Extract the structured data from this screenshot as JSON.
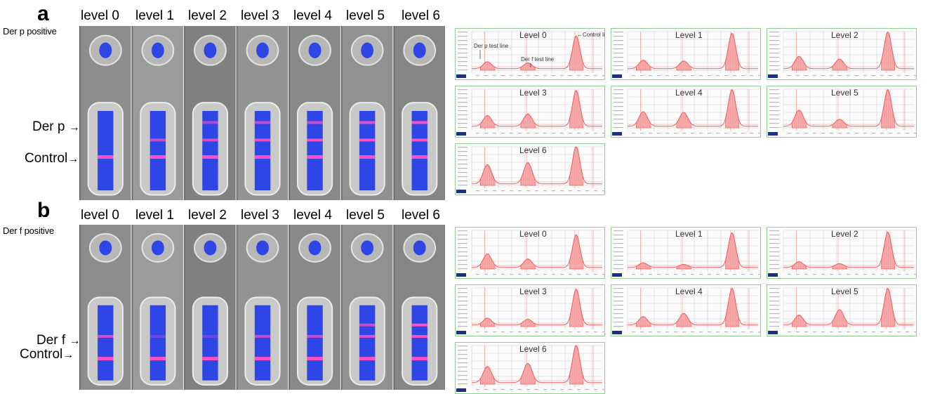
{
  "panels": [
    {
      "letter": "a",
      "side_label": "Der p positive",
      "test_label": "Der p",
      "control_label": "Control",
      "levels": [
        "level 0",
        "level 1",
        "level 2",
        "level 3",
        "level 4",
        "level 5",
        "level 6"
      ],
      "strip_test_intensity": [
        0,
        0.45,
        0.55,
        0.65,
        0.7,
        0.8,
        0.95
      ],
      "strip_second_intensity": [
        0,
        0,
        0.35,
        0.45,
        0.5,
        0.6,
        0.9
      ],
      "charts": [
        {
          "title": "Level 0",
          "peaks": [
            0.18,
            0.15,
            0.85
          ]
        },
        {
          "title": "Level 1",
          "peaks": [
            0.22,
            0.2,
            0.92
          ]
        },
        {
          "title": "Level 2",
          "peaks": [
            0.32,
            0.25,
            0.95
          ]
        },
        {
          "title": "Level 3",
          "peaks": [
            0.28,
            0.32,
            0.93
          ]
        },
        {
          "title": "Level 4",
          "peaks": [
            0.38,
            0.36,
            0.95
          ]
        },
        {
          "title": "Level 5",
          "peaks": [
            0.42,
            0.18,
            0.95
          ]
        },
        {
          "title": "Level 6",
          "peaks": [
            0.5,
            0.55,
            0.97
          ]
        }
      ],
      "annotations": {
        "test_line_1": "Der p test line",
        "test_line_2": "Der f test line",
        "control_line": "Control line"
      }
    },
    {
      "letter": "b",
      "side_label": "Der f positive",
      "test_label": "Der f",
      "control_label": "Control",
      "levels": [
        "level 0",
        "level 1",
        "level 2",
        "level 3",
        "level 4",
        "level 5",
        "level 6"
      ],
      "strip_test_intensity": [
        0.55,
        0.05,
        0.05,
        0.45,
        0.5,
        0.6,
        0.9
      ],
      "strip_second_intensity": [
        0,
        0,
        0,
        0,
        0,
        0.5,
        0.85
      ],
      "charts": [
        {
          "title": "Level 0",
          "peaks": [
            0.35,
            0.22,
            0.85
          ]
        },
        {
          "title": "Level 1",
          "peaks": [
            0.12,
            0.08,
            0.9
          ]
        },
        {
          "title": "Level 2",
          "peaks": [
            0.15,
            0.1,
            0.92
          ]
        },
        {
          "title": "Level 3",
          "peaks": [
            0.18,
            0.15,
            0.93
          ]
        },
        {
          "title": "Level 4",
          "peaks": [
            0.22,
            0.3,
            0.95
          ]
        },
        {
          "title": "Level 5",
          "peaks": [
            0.26,
            0.4,
            0.95
          ]
        },
        {
          "title": "Level 6",
          "peaks": [
            0.42,
            0.5,
            0.97
          ]
        }
      ]
    }
  ],
  "colors": {
    "strip_bg": "#8d8f8e",
    "cassette": "#c9cac8",
    "blue": "#2f46e6",
    "band": "#ff4fc0",
    "chart_line": "#f06060",
    "chart_fill": "#f4a0a0",
    "chart_border": "#8fd08f",
    "grid": "#cfcfcf"
  }
}
